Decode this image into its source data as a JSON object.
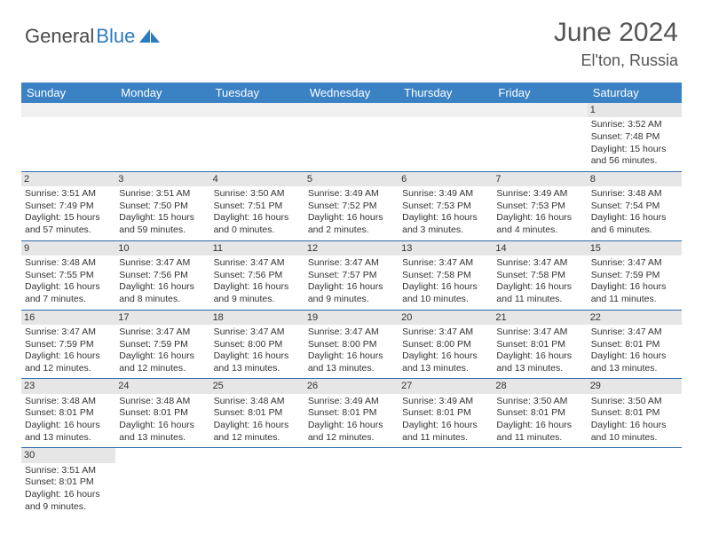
{
  "logo": {
    "part1": "General",
    "part2": "Blue"
  },
  "title": "June 2024",
  "location": "El'ton, Russia",
  "colors": {
    "headerBg": "#3a82c4",
    "headerText": "#ffffff",
    "dayStripBg": "#e6e6e6",
    "borderColor": "#2b6aa8",
    "logoAccent": "#2b7bbf",
    "logoText": "#4a4a4a"
  },
  "weekdays": [
    "Sunday",
    "Monday",
    "Tuesday",
    "Wednesday",
    "Thursday",
    "Friday",
    "Saturday"
  ],
  "weeks": [
    [
      null,
      null,
      null,
      null,
      null,
      null,
      {
        "d": "1",
        "sr": "3:52 AM",
        "ss": "7:48 PM",
        "dl": "15 hours and 56 minutes."
      }
    ],
    [
      {
        "d": "2",
        "sr": "3:51 AM",
        "ss": "7:49 PM",
        "dl": "15 hours and 57 minutes."
      },
      {
        "d": "3",
        "sr": "3:51 AM",
        "ss": "7:50 PM",
        "dl": "15 hours and 59 minutes."
      },
      {
        "d": "4",
        "sr": "3:50 AM",
        "ss": "7:51 PM",
        "dl": "16 hours and 0 minutes."
      },
      {
        "d": "5",
        "sr": "3:49 AM",
        "ss": "7:52 PM",
        "dl": "16 hours and 2 minutes."
      },
      {
        "d": "6",
        "sr": "3:49 AM",
        "ss": "7:53 PM",
        "dl": "16 hours and 3 minutes."
      },
      {
        "d": "7",
        "sr": "3:49 AM",
        "ss": "7:53 PM",
        "dl": "16 hours and 4 minutes."
      },
      {
        "d": "8",
        "sr": "3:48 AM",
        "ss": "7:54 PM",
        "dl": "16 hours and 6 minutes."
      }
    ],
    [
      {
        "d": "9",
        "sr": "3:48 AM",
        "ss": "7:55 PM",
        "dl": "16 hours and 7 minutes."
      },
      {
        "d": "10",
        "sr": "3:47 AM",
        "ss": "7:56 PM",
        "dl": "16 hours and 8 minutes."
      },
      {
        "d": "11",
        "sr": "3:47 AM",
        "ss": "7:56 PM",
        "dl": "16 hours and 9 minutes."
      },
      {
        "d": "12",
        "sr": "3:47 AM",
        "ss": "7:57 PM",
        "dl": "16 hours and 9 minutes."
      },
      {
        "d": "13",
        "sr": "3:47 AM",
        "ss": "7:58 PM",
        "dl": "16 hours and 10 minutes."
      },
      {
        "d": "14",
        "sr": "3:47 AM",
        "ss": "7:58 PM",
        "dl": "16 hours and 11 minutes."
      },
      {
        "d": "15",
        "sr": "3:47 AM",
        "ss": "7:59 PM",
        "dl": "16 hours and 11 minutes."
      }
    ],
    [
      {
        "d": "16",
        "sr": "3:47 AM",
        "ss": "7:59 PM",
        "dl": "16 hours and 12 minutes."
      },
      {
        "d": "17",
        "sr": "3:47 AM",
        "ss": "7:59 PM",
        "dl": "16 hours and 12 minutes."
      },
      {
        "d": "18",
        "sr": "3:47 AM",
        "ss": "8:00 PM",
        "dl": "16 hours and 13 minutes."
      },
      {
        "d": "19",
        "sr": "3:47 AM",
        "ss": "8:00 PM",
        "dl": "16 hours and 13 minutes."
      },
      {
        "d": "20",
        "sr": "3:47 AM",
        "ss": "8:00 PM",
        "dl": "16 hours and 13 minutes."
      },
      {
        "d": "21",
        "sr": "3:47 AM",
        "ss": "8:01 PM",
        "dl": "16 hours and 13 minutes."
      },
      {
        "d": "22",
        "sr": "3:47 AM",
        "ss": "8:01 PM",
        "dl": "16 hours and 13 minutes."
      }
    ],
    [
      {
        "d": "23",
        "sr": "3:48 AM",
        "ss": "8:01 PM",
        "dl": "16 hours and 13 minutes."
      },
      {
        "d": "24",
        "sr": "3:48 AM",
        "ss": "8:01 PM",
        "dl": "16 hours and 13 minutes."
      },
      {
        "d": "25",
        "sr": "3:48 AM",
        "ss": "8:01 PM",
        "dl": "16 hours and 12 minutes."
      },
      {
        "d": "26",
        "sr": "3:49 AM",
        "ss": "8:01 PM",
        "dl": "16 hours and 12 minutes."
      },
      {
        "d": "27",
        "sr": "3:49 AM",
        "ss": "8:01 PM",
        "dl": "16 hours and 11 minutes."
      },
      {
        "d": "28",
        "sr": "3:50 AM",
        "ss": "8:01 PM",
        "dl": "16 hours and 11 minutes."
      },
      {
        "d": "29",
        "sr": "3:50 AM",
        "ss": "8:01 PM",
        "dl": "16 hours and 10 minutes."
      }
    ],
    [
      {
        "d": "30",
        "sr": "3:51 AM",
        "ss": "8:01 PM",
        "dl": "16 hours and 9 minutes."
      },
      null,
      null,
      null,
      null,
      null,
      null
    ]
  ],
  "labels": {
    "sunrise": "Sunrise:",
    "sunset": "Sunset:",
    "daylight": "Daylight:"
  }
}
